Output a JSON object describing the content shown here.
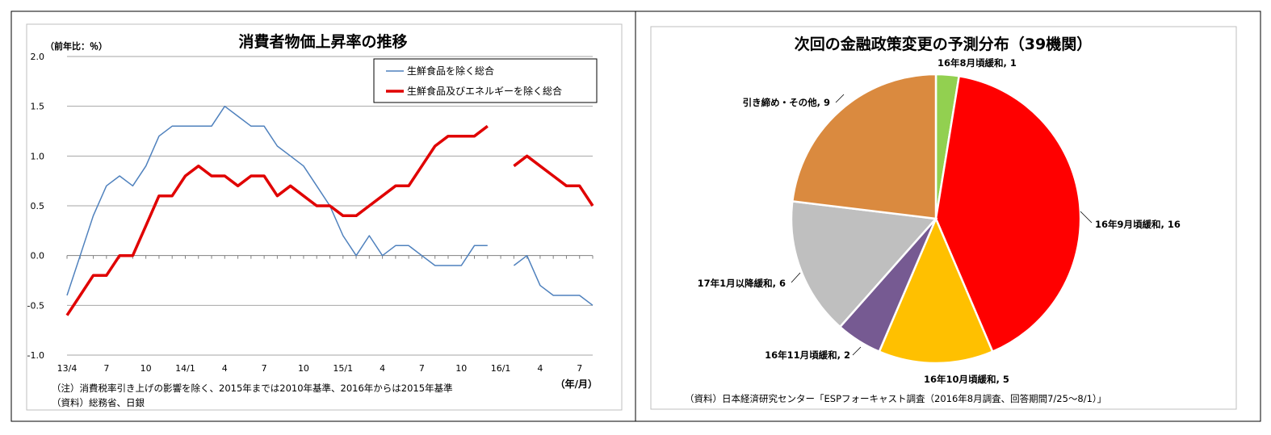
{
  "chart_data": [
    {
      "type": "line",
      "title": "消費者物価上昇率の推移",
      "ylabel": "（前年比：％）",
      "xlabel": "（年/月）",
      "ylim": [
        -1.0,
        2.0
      ],
      "yticks": [
        "2.0",
        "1.5",
        "1.0",
        "0.5",
        "0.0",
        "-0.5",
        "-1.0"
      ],
      "grid": true,
      "legend_position": "top-right",
      "x_tick_labels": [
        {
          "i": 0,
          "label": "13/4"
        },
        {
          "i": 3,
          "label": "7"
        },
        {
          "i": 6,
          "label": "10"
        },
        {
          "i": 9,
          "label": "14/1"
        },
        {
          "i": 12,
          "label": "4"
        },
        {
          "i": 15,
          "label": "7"
        },
        {
          "i": 18,
          "label": "10"
        },
        {
          "i": 21,
          "label": "15/1"
        },
        {
          "i": 24,
          "label": "4"
        },
        {
          "i": 27,
          "label": "7"
        },
        {
          "i": 30,
          "label": "10"
        },
        {
          "i": 33,
          "label": "16/1"
        },
        {
          "i": 36,
          "label": "4"
        },
        {
          "i": 39,
          "label": "7"
        }
      ],
      "series": [
        {
          "name": "生鮮食品を除く総合",
          "color": "#4f81bd",
          "values": [
            -0.4,
            0.0,
            0.4,
            0.7,
            0.8,
            0.7,
            0.9,
            1.2,
            1.3,
            1.3,
            1.3,
            1.3,
            1.5,
            1.4,
            1.3,
            1.3,
            1.1,
            1.0,
            0.9,
            0.7,
            0.5,
            0.2,
            0.0,
            0.2,
            0.0,
            0.1,
            0.1,
            0.0,
            -0.1,
            -0.1,
            -0.1,
            0.1,
            0.1,
            null,
            -0.1,
            0.0,
            -0.3,
            -0.4,
            -0.4,
            -0.4,
            -0.5
          ]
        },
        {
          "name": "生鮮食品及びエネルギーを除く総合",
          "color": "#e00000",
          "values": [
            -0.6,
            -0.4,
            -0.2,
            -0.2,
            0.0,
            0.0,
            0.3,
            0.6,
            0.6,
            0.8,
            0.9,
            0.8,
            0.8,
            0.7,
            0.8,
            0.8,
            0.6,
            0.7,
            0.6,
            0.5,
            0.5,
            0.4,
            0.4,
            0.5,
            0.6,
            0.7,
            0.7,
            0.9,
            1.1,
            1.2,
            1.2,
            1.2,
            1.3,
            null,
            0.9,
            1.0,
            0.9,
            0.8,
            0.7,
            0.7,
            0.5
          ]
        }
      ],
      "notes": [
        "（注）消費税率引き上げの影響を除く、2015年までは2010年基準、2016年からは2015年基準",
        "（資料）総務省、日銀"
      ]
    },
    {
      "type": "pie",
      "title": "次回の金融政策変更の予測分布（39機関）",
      "slices": [
        {
          "label": "16年8月頃緩和, 1",
          "value": 1,
          "color": "#92d050"
        },
        {
          "label": "16年9月頃緩和, 16",
          "value": 16,
          "color": "#ff0000"
        },
        {
          "label": "16年10月頃緩和, 5",
          "value": 5,
          "color": "#ffc000"
        },
        {
          "label": "16年11月頃緩和, 2",
          "value": 2,
          "color": "#765a92"
        },
        {
          "label": "17年1月以降緩和, 6",
          "value": 6,
          "color": "#bfbfbf"
        },
        {
          "label": "引き締め・その他, 9",
          "value": 9,
          "color": "#da8a3f"
        }
      ],
      "source": "（資料）日本経済研究センター「ESPフォーキャスト調査（2016年8月調査、回答期間7/25～8/1）」"
    }
  ]
}
